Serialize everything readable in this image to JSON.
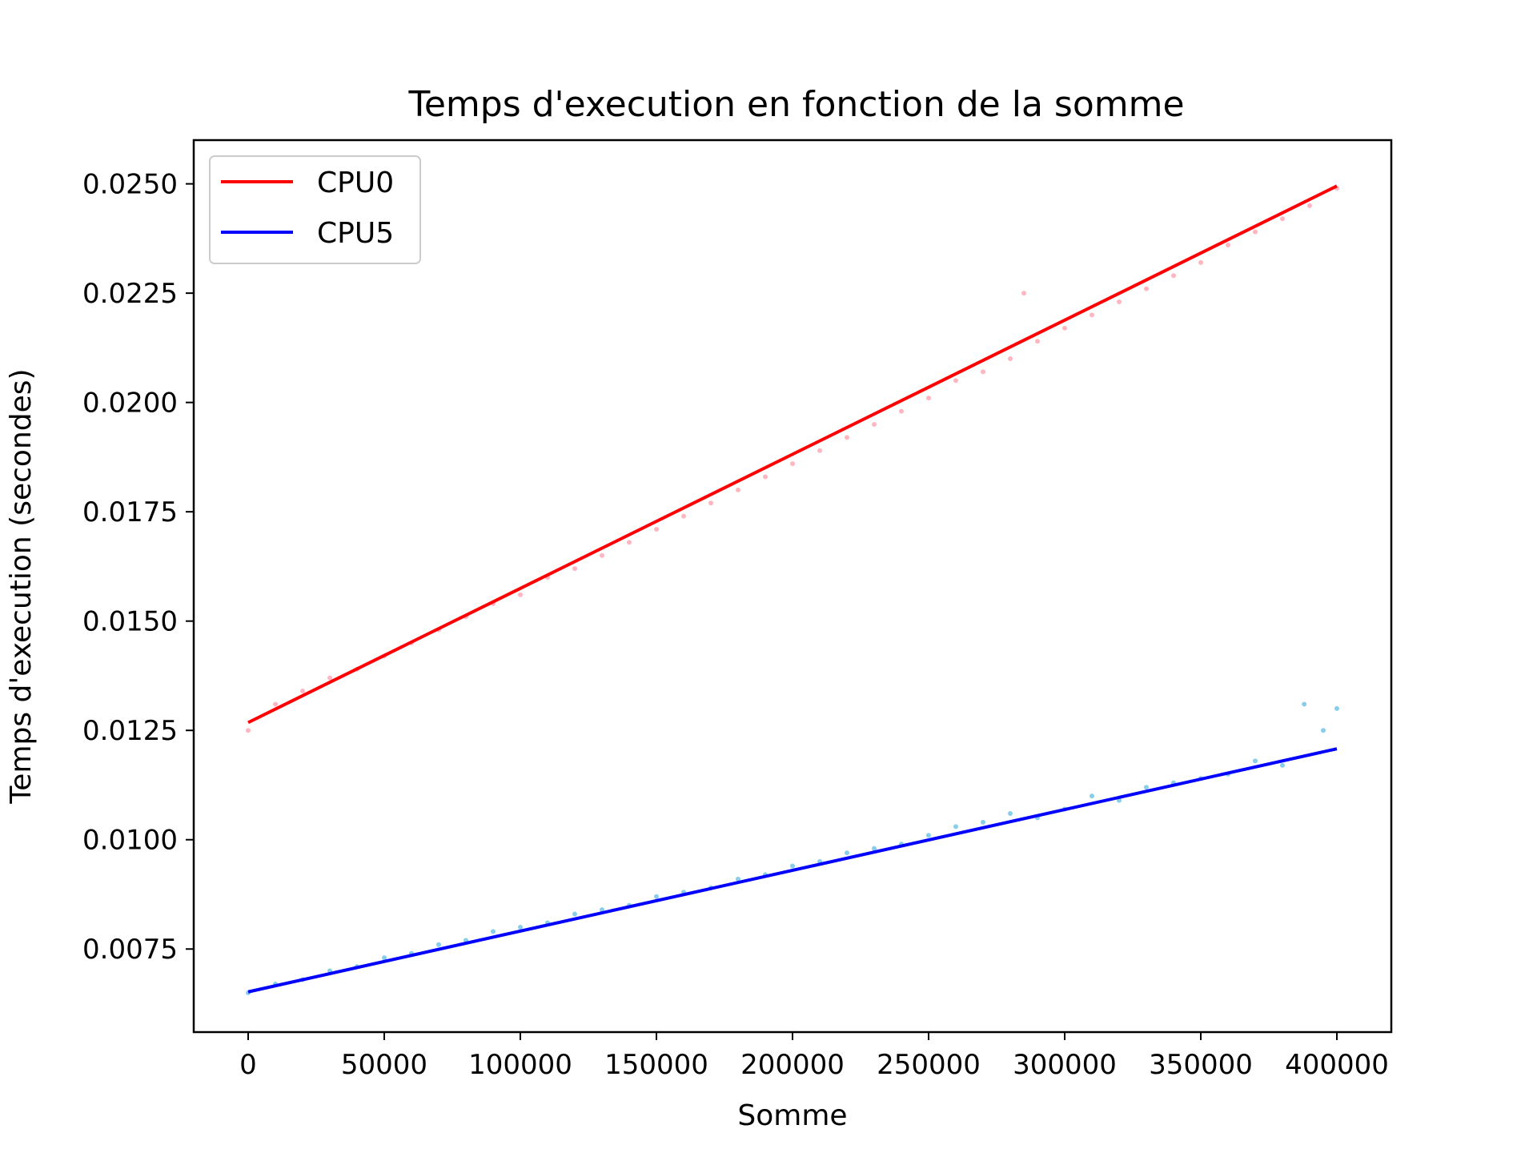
{
  "chart_data": {
    "type": "line",
    "title": "Temps d'execution en fonction de la somme",
    "xlabel": "Somme",
    "ylabel": "Temps d'execution (secondes)",
    "xlim": [
      -20000,
      420000
    ],
    "ylim": [
      0.0056,
      0.026
    ],
    "xticks": [
      0,
      50000,
      100000,
      150000,
      200000,
      250000,
      300000,
      350000,
      400000
    ],
    "xtick_labels": [
      "0",
      "50000",
      "100000",
      "150000",
      "200000",
      "250000",
      "300000",
      "350000",
      "400000"
    ],
    "yticks": [
      0.0075,
      0.01,
      0.0125,
      0.015,
      0.0175,
      0.02,
      0.0225,
      0.025
    ],
    "ytick_labels": [
      "0.0075",
      "0.0100",
      "0.0125",
      "0.0150",
      "0.0175",
      "0.0200",
      "0.0225",
      "0.0250"
    ],
    "grid": false,
    "legend": "top-left",
    "series": [
      {
        "name": "CPU0",
        "kind": "fit-line",
        "color": "#ff0000",
        "x": [
          0,
          400000
        ],
        "y": [
          0.01268,
          0.02495
        ]
      },
      {
        "name": "CPU5",
        "kind": "fit-line",
        "color": "#0000ff",
        "x": [
          0,
          400000
        ],
        "y": [
          0.00652,
          0.01208
        ]
      },
      {
        "kind": "scatter",
        "color": "#ffb6c1",
        "x": [
          0,
          10000,
          20000,
          30000,
          40000,
          50000,
          60000,
          70000,
          80000,
          90000,
          100000,
          110000,
          120000,
          130000,
          140000,
          150000,
          160000,
          170000,
          180000,
          190000,
          200000,
          210000,
          220000,
          230000,
          240000,
          250000,
          260000,
          270000,
          280000,
          285000,
          290000,
          300000,
          310000,
          320000,
          330000,
          340000,
          350000,
          360000,
          370000,
          380000,
          390000,
          400000
        ],
        "y": [
          0.0125,
          0.0131,
          0.0134,
          0.0137,
          0.0139,
          0.0142,
          0.0145,
          0.0148,
          0.0151,
          0.0154,
          0.0156,
          0.016,
          0.0162,
          0.0165,
          0.0168,
          0.0171,
          0.0174,
          0.0177,
          0.018,
          0.0183,
          0.0186,
          0.0189,
          0.0192,
          0.0195,
          0.0198,
          0.0201,
          0.0205,
          0.0207,
          0.021,
          0.0225,
          0.0214,
          0.0217,
          0.022,
          0.0223,
          0.0226,
          0.0229,
          0.0232,
          0.0236,
          0.0239,
          0.0242,
          0.0245,
          0.0249
        ]
      },
      {
        "kind": "scatter",
        "color": "#87ceeb",
        "x": [
          0,
          10000,
          20000,
          30000,
          40000,
          50000,
          60000,
          70000,
          80000,
          90000,
          100000,
          110000,
          120000,
          130000,
          140000,
          150000,
          160000,
          170000,
          180000,
          190000,
          200000,
          210000,
          220000,
          230000,
          240000,
          250000,
          260000,
          270000,
          280000,
          290000,
          300000,
          310000,
          320000,
          330000,
          340000,
          350000,
          360000,
          370000,
          380000,
          388000,
          395000,
          400000
        ],
        "y": [
          0.0065,
          0.0067,
          0.0068,
          0.007,
          0.0071,
          0.0073,
          0.0074,
          0.0076,
          0.0077,
          0.0079,
          0.008,
          0.0081,
          0.0083,
          0.0084,
          0.0085,
          0.0087,
          0.0088,
          0.0089,
          0.0091,
          0.0092,
          0.0094,
          0.0095,
          0.0097,
          0.0098,
          0.0099,
          0.0101,
          0.0103,
          0.0104,
          0.0106,
          0.0105,
          0.0107,
          0.011,
          0.0109,
          0.0112,
          0.0113,
          0.0114,
          0.0115,
          0.0118,
          0.0117,
          0.0131,
          0.0125,
          0.013
        ]
      }
    ]
  }
}
